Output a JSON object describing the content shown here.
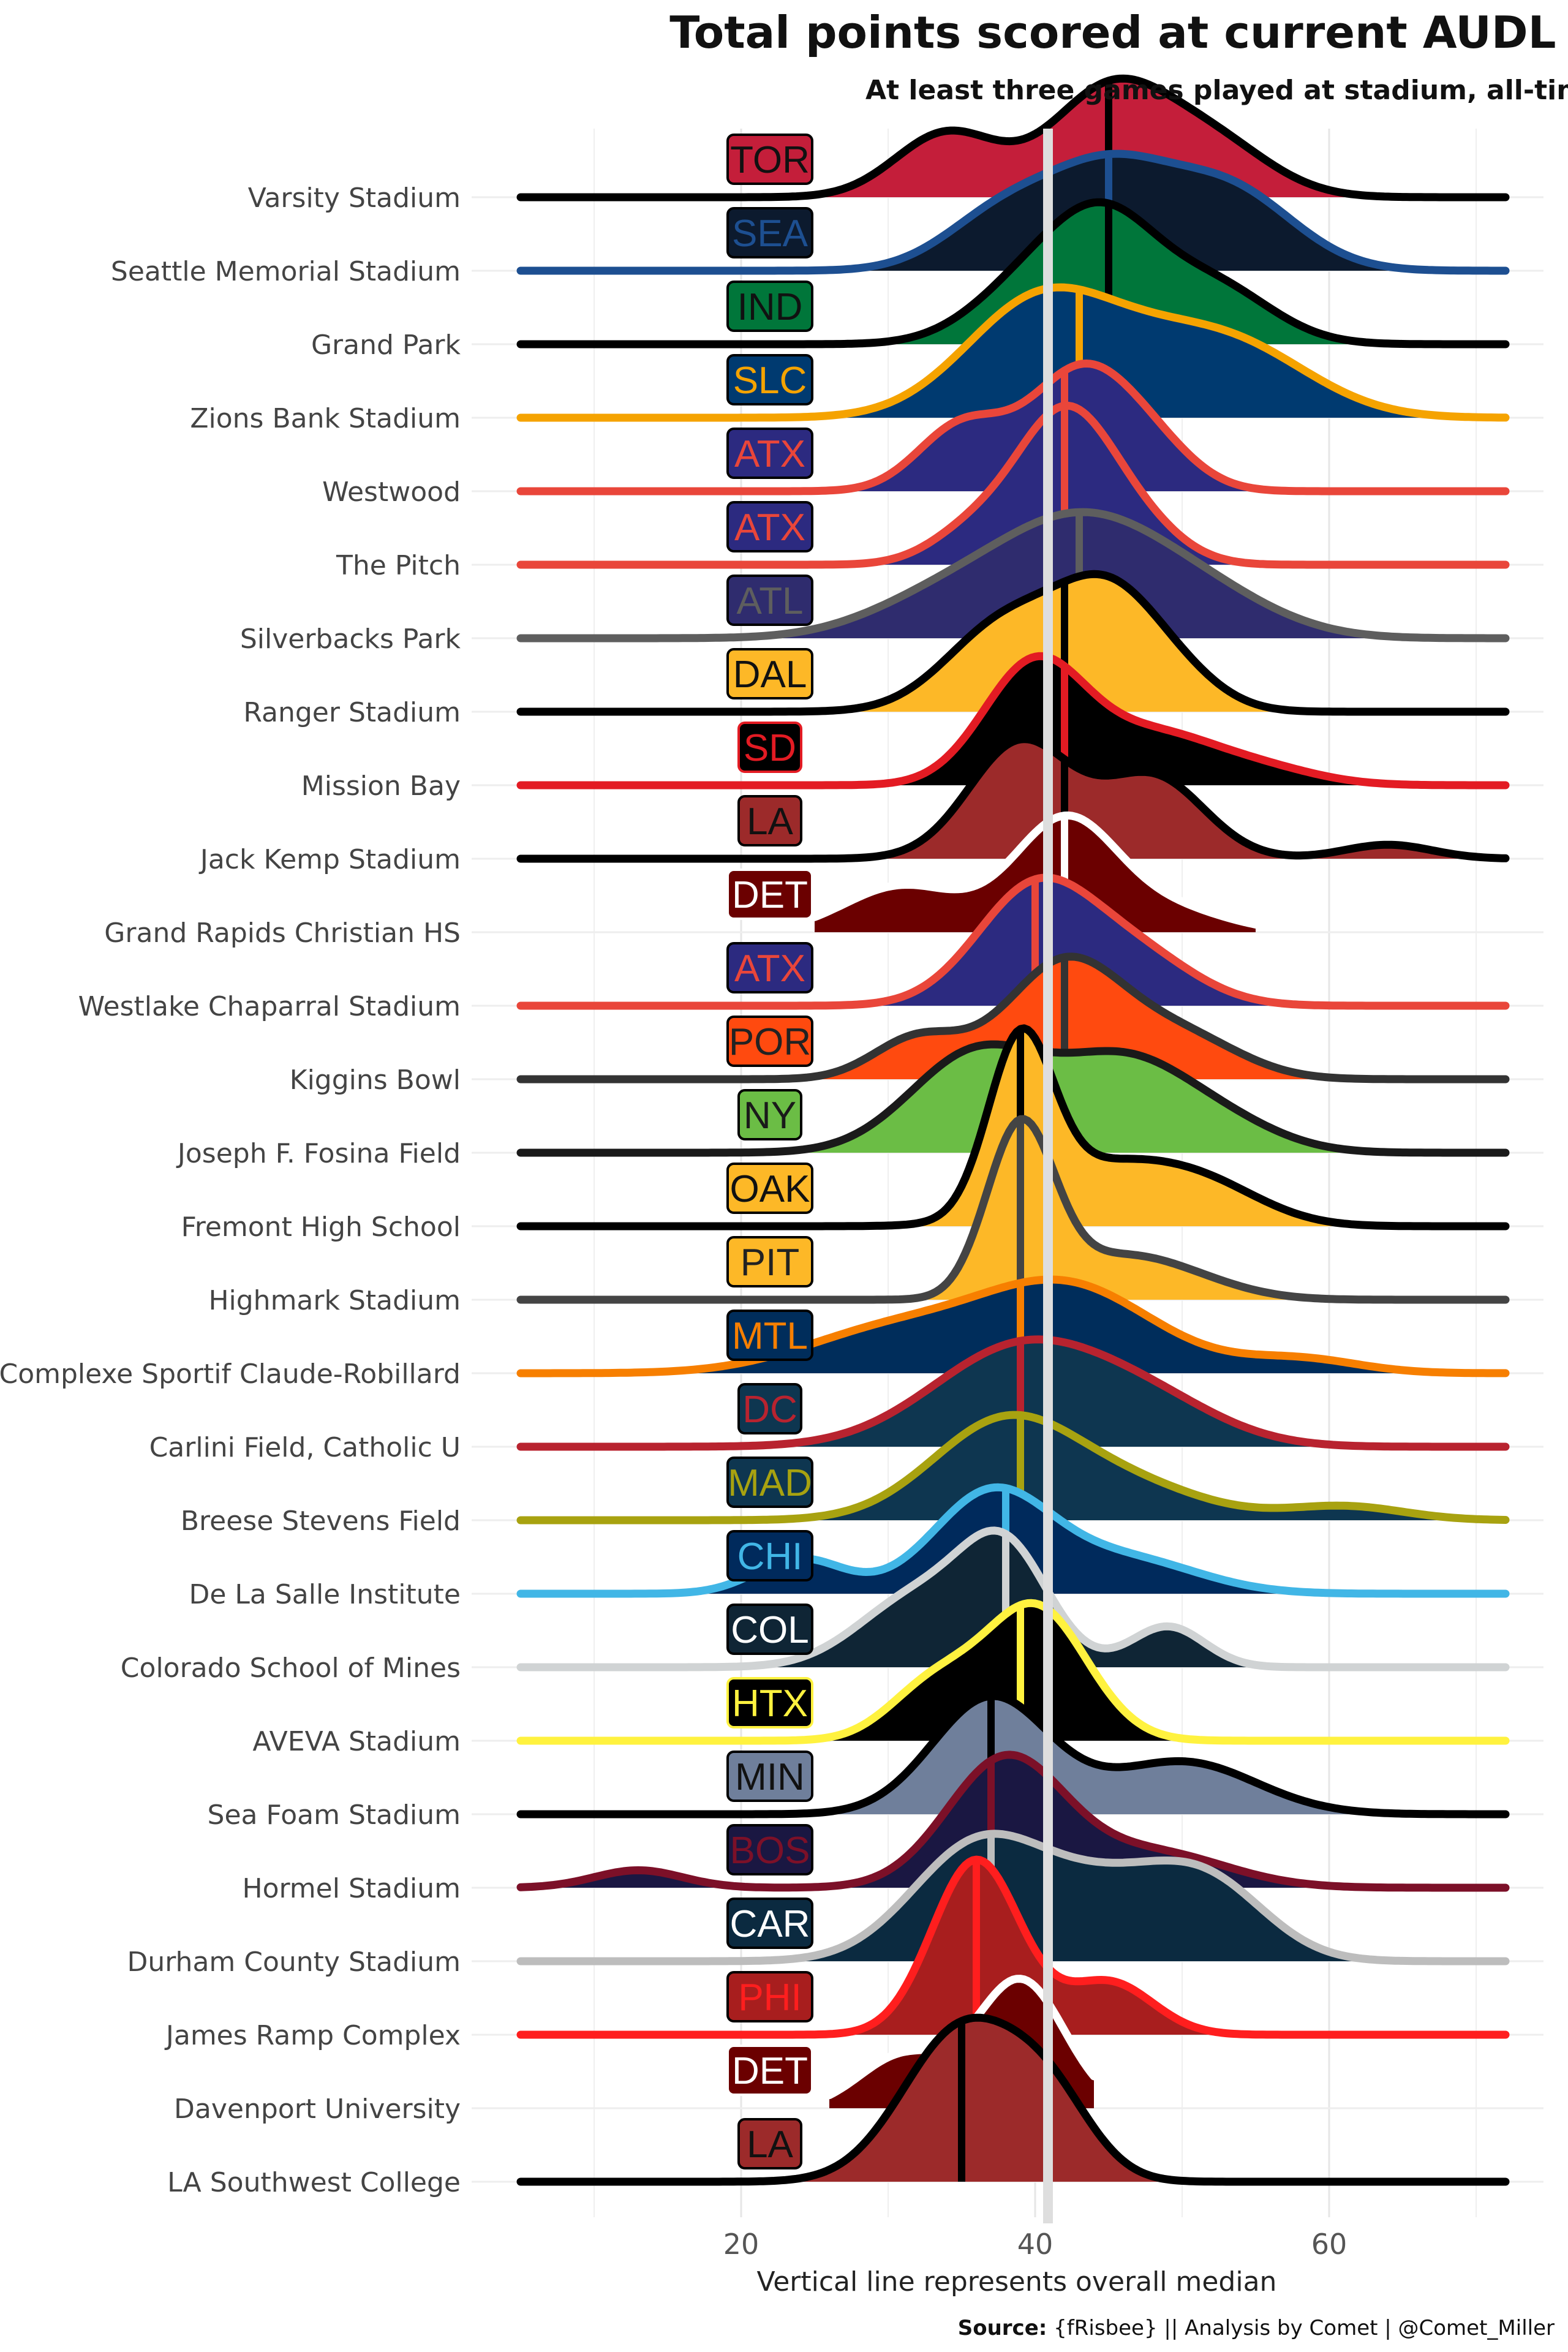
{
  "chart_data": {
    "type": "ridgeline",
    "title": "Total points scored at current AUDL stadiums",
    "subtitle": "At least three games played at stadium, all-time",
    "xlabel": "Vertical line represents overall median",
    "caption_source_label": "Source:",
    "caption_rest": "{fRisbee} || Analysis by Comet | @Comet_Miller",
    "x_ticks": [
      20,
      40,
      60
    ],
    "x_range": [
      3,
      72
    ],
    "overall_median": 41,
    "grid": true,
    "series": [
      {
        "stadium": "Varsity Stadium",
        "team": "TOR",
        "fill": "#C41E3A",
        "line": "#000000",
        "text": "#111111",
        "median": 45,
        "x_min": 5,
        "x_max": 72,
        "modes": [
          [
            34,
            0.55,
            3.5
          ],
          [
            45,
            0.9,
            4
          ],
          [
            52,
            0.45,
            4
          ]
        ]
      },
      {
        "stadium": "Seattle Memorial Stadium",
        "team": "SEA",
        "fill": "#0C1A2E",
        "line": "#1D4F91",
        "text": "#1D4F91",
        "median": 45,
        "x_min": 5,
        "x_max": 72,
        "modes": [
          [
            38,
            0.5,
            4
          ],
          [
            45,
            0.75,
            4
          ],
          [
            53,
            0.7,
            4.5
          ]
        ]
      },
      {
        "stadium": "Grand Park",
        "team": "IND",
        "fill": "#00763A",
        "line": "#000000",
        "text": "#111111",
        "median": 45,
        "x_min": 5,
        "x_max": 72,
        "modes": [
          [
            40,
            0.55,
            4
          ],
          [
            45,
            0.85,
            3.5
          ],
          [
            52,
            0.5,
            4
          ]
        ]
      },
      {
        "stadium": "Zions Bank Stadium",
        "team": "SLC",
        "fill": "#003A70",
        "line": "#F5A300",
        "text": "#F5A300",
        "median": 43,
        "x_min": 5,
        "x_max": 72,
        "modes": [
          [
            40,
            0.9,
            5
          ],
          [
            49,
            0.55,
            6
          ],
          [
            55,
            0.3,
            5
          ]
        ]
      },
      {
        "stadium": "Westwood",
        "team": "ATX",
        "fill": "#2C2A80",
        "line": "#E9463A",
        "text": "#E9463A",
        "median": 42,
        "x_min": 5,
        "x_max": 72,
        "modes": [
          [
            35,
            0.55,
            3
          ],
          [
            43,
            1.0,
            3.5
          ],
          [
            48,
            0.3,
            3
          ]
        ]
      },
      {
        "stadium": "The Pitch",
        "team": "ATX",
        "fill": "#2C2A80",
        "line": "#E9463A",
        "text": "#E9463A",
        "median": 42,
        "x_min": 5,
        "x_max": 72,
        "modes": [
          [
            36,
            0.3,
            3
          ],
          [
            42,
            1.25,
            3.2
          ],
          [
            47,
            0.3,
            3
          ]
        ]
      },
      {
        "stadium": "Silverbacks Park",
        "team": "ATL",
        "fill": "#2F2C6E",
        "line": "#5E5E5E",
        "text": "#5E5E5E",
        "median": 43,
        "x_min": 5,
        "x_max": 72,
        "modes": [
          [
            33,
            0.25,
            5
          ],
          [
            43,
            1.0,
            6
          ],
          [
            52,
            0.25,
            5
          ]
        ]
      },
      {
        "stadium": "Ranger Stadium",
        "team": "DAL",
        "fill": "#FDB827",
        "line": "#000000",
        "text": "#111111",
        "median": 42,
        "x_min": 5,
        "x_max": 72,
        "modes": [
          [
            38,
            0.75,
            4
          ],
          [
            45,
            0.95,
            3.5
          ],
          [
            50,
            0.2,
            3
          ]
        ]
      },
      {
        "stadium": "Mission Bay",
        "team": "SD",
        "fill": "#000000",
        "line": "#E31B23",
        "text": "#E31B23",
        "median": 42,
        "x_min": 5,
        "x_max": 72,
        "modes": [
          [
            40,
            1.05,
            3.5
          ],
          [
            48,
            0.4,
            4
          ],
          [
            55,
            0.15,
            4
          ]
        ]
      },
      {
        "stadium": "Jack Kemp Stadium",
        "team": "LA",
        "fill": "#9C2A2A",
        "line": "#000000",
        "text": "#111111",
        "median": 42,
        "x_min": 5,
        "x_max": 72,
        "modes": [
          [
            39,
            1.0,
            3.5
          ],
          [
            48,
            0.7,
            3.5
          ],
          [
            64,
            0.12,
            3
          ]
        ]
      },
      {
        "stadium": "Grand Rapids Christian HS",
        "team": "DET",
        "fill": "#6B0000",
        "line": "#FFFFFF",
        "text": "#FFFFFF",
        "median": 42,
        "x_min": 25,
        "x_max": 55,
        "modes": [
          [
            31,
            0.4,
            4
          ],
          [
            42,
            0.95,
            3.5
          ],
          [
            49,
            0.2,
            4
          ]
        ]
      },
      {
        "stadium": "Westlake Chaparral Stadium",
        "team": "ATX",
        "fill": "#2C2A80",
        "line": "#E9463A",
        "text": "#E9463A",
        "median": 40,
        "x_min": 5,
        "x_max": 72,
        "modes": [
          [
            40,
            1.0,
            4
          ],
          [
            47,
            0.4,
            4
          ]
        ]
      },
      {
        "stadium": "Kiggins Bowl",
        "team": "POR",
        "fill": "#FF4A0F",
        "line": "#333333",
        "text": "#222222",
        "median": 42,
        "x_min": 5,
        "x_max": 72,
        "modes": [
          [
            32,
            0.35,
            3
          ],
          [
            42,
            1.0,
            4
          ],
          [
            50,
            0.35,
            4
          ]
        ]
      },
      {
        "stadium": "Joseph F. Fosina Field",
        "team": "NY",
        "fill": "#6BBD45",
        "line": "#1A1A1A",
        "text": "#1A1A1A",
        "median": 40,
        "x_min": 5,
        "x_max": 72,
        "modes": [
          [
            36,
            0.85,
            4.5
          ],
          [
            46,
            0.75,
            4.5
          ],
          [
            53,
            0.2,
            4
          ]
        ]
      },
      {
        "stadium": "Fremont High School",
        "team": "OAK",
        "fill": "#FDB827",
        "line": "#000000",
        "text": "#111111",
        "median": 39,
        "x_min": 5,
        "x_max": 72,
        "modes": [
          [
            39,
            1.45,
            2.2
          ],
          [
            45,
            0.5,
            5
          ],
          [
            52,
            0.25,
            4
          ]
        ]
      },
      {
        "stadium": "Highmark Stadium",
        "team": "PIT",
        "fill": "#FDB827",
        "line": "#444444",
        "text": "#222222",
        "median": 39,
        "x_min": 5,
        "x_max": 72,
        "modes": [
          [
            39,
            1.45,
            2.3
          ],
          [
            45,
            0.3,
            4
          ],
          [
            50,
            0.15,
            4
          ]
        ]
      },
      {
        "stadium": "Complexe Sportif Claude-Robillard",
        "team": "MTL",
        "fill": "#002D5B",
        "line": "#F77F00",
        "text": "#F77F00",
        "median": 39,
        "x_min": 5,
        "x_max": 72,
        "modes": [
          [
            30,
            0.35,
            6
          ],
          [
            42,
            0.75,
            6
          ],
          [
            58,
            0.12,
            4
          ]
        ]
      },
      {
        "stadium": "Carlini Field, Catholic U",
        "team": "DC",
        "fill": "#0E3650",
        "line": "#B8232F",
        "text": "#B8232F",
        "median": 39,
        "x_min": 5,
        "x_max": 72,
        "modes": [
          [
            39,
            0.85,
            6
          ],
          [
            48,
            0.3,
            5
          ]
        ]
      },
      {
        "stadium": "Breese Stevens Field",
        "team": "MAD",
        "fill": "#0E3650",
        "line": "#A8A210",
        "text": "#A8A210",
        "median": 39,
        "x_min": 5,
        "x_max": 72,
        "modes": [
          [
            38,
            0.85,
            5
          ],
          [
            47,
            0.25,
            5
          ],
          [
            61,
            0.12,
            4
          ]
        ]
      },
      {
        "stadium": "De La Salle Institute",
        "team": "CHI",
        "fill": "#002A5C",
        "line": "#41B6E6",
        "text": "#41B6E6",
        "median": 38,
        "x_min": 5,
        "x_max": 72,
        "modes": [
          [
            24,
            0.3,
            3
          ],
          [
            37,
            0.85,
            4
          ],
          [
            46,
            0.3,
            5
          ]
        ]
      },
      {
        "stadium": "Colorado School of Mines",
        "team": "COL",
        "fill": "#0F2535",
        "line": "#D0D3D4",
        "text": "#FFFFFF",
        "median": 38,
        "x_min": 5,
        "x_max": 72,
        "modes": [
          [
            32,
            0.6,
            4
          ],
          [
            38,
            0.95,
            3
          ],
          [
            49,
            0.35,
            2.5
          ]
        ]
      },
      {
        "stadium": "AVEVA Stadium",
        "team": "HTX",
        "fill": "#000000",
        "line": "#FFF23F",
        "text": "#FFF23F",
        "median": 39,
        "x_min": 5,
        "x_max": 72,
        "modes": [
          [
            33,
            0.45,
            3
          ],
          [
            40,
            1.15,
            3.5
          ]
        ]
      },
      {
        "stadium": "Sea Foam Stadium",
        "team": "MIN",
        "fill": "#6F7F9B",
        "line": "#000000",
        "text": "#111111",
        "median": 37,
        "x_min": 5,
        "x_max": 72,
        "modes": [
          [
            37,
            1.0,
            4
          ],
          [
            50,
            0.45,
            5
          ]
        ]
      },
      {
        "stadium": "Hormel Stadium",
        "team": "BOS",
        "fill": "#1A1742",
        "line": "#7C1028",
        "text": "#7C1028",
        "median": 37,
        "x_min": 5,
        "x_max": 72,
        "modes": [
          [
            13,
            0.15,
            3
          ],
          [
            38,
            1.1,
            4
          ],
          [
            48,
            0.3,
            5
          ]
        ]
      },
      {
        "stadium": "Durham County Stadium",
        "team": "CAR",
        "fill": "#0B2A40",
        "line": "#BDBDBD",
        "text": "#FFFFFF",
        "median": 37,
        "x_min": 5,
        "x_max": 72,
        "modes": [
          [
            36,
            0.95,
            4.5
          ],
          [
            45,
            0.6,
            5
          ],
          [
            52,
            0.55,
            4
          ]
        ]
      },
      {
        "stadium": "James Ramp Complex",
        "team": "PHI",
        "fill": "#A81E1E",
        "line": "#FF1E1E",
        "text": "#FF1E1E",
        "median": 36,
        "x_min": 5,
        "x_max": 72,
        "modes": [
          [
            36,
            1.5,
            3
          ],
          [
            45,
            0.45,
            3
          ]
        ]
      },
      {
        "stadium": "Davenport University",
        "team": "DET",
        "fill": "#6B0000",
        "line": "#FFFFFF",
        "text": "#FFFFFF",
        "median": 36,
        "x_min": 26,
        "x_max": 44,
        "modes": [
          [
            31,
            0.45,
            3
          ],
          [
            39,
            1.1,
            3
          ]
        ]
      },
      {
        "stadium": "LA Southwest College",
        "team": "LA",
        "fill": "#9C2A2A",
        "line": "#000000",
        "text": "#111111",
        "median": 35,
        "x_min": 5,
        "x_max": 72,
        "modes": [
          [
            35,
            1.3,
            4
          ],
          [
            41,
            0.6,
            3
          ]
        ]
      }
    ]
  }
}
